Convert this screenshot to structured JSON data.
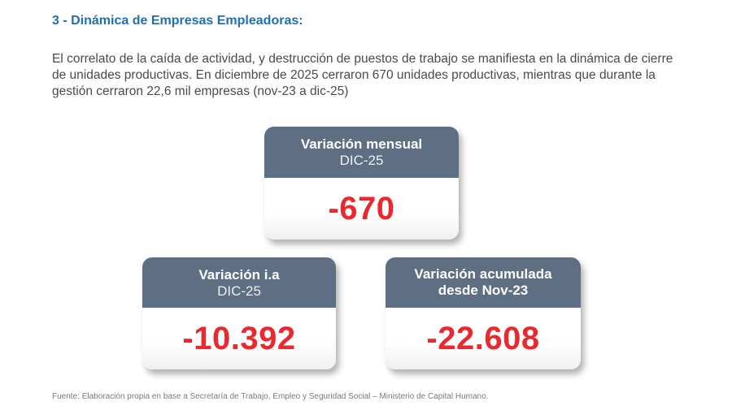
{
  "section": {
    "title": "3 - Dinámica de Empresas Empleadoras:"
  },
  "intro": "El correlato de la caída de actividad, y destrucción de puestos de trabajo se manifiesta en la dinámica de cierre de unidades productivas. En diciembre de 2025 cerraron 670 unidades productivas, mientras que durante la gestión cerraron 22,6 mil empresas (nov-23 a dic-25)",
  "cards": {
    "monthly": {
      "title": "Variación mensual",
      "subtitle": "DIC-25",
      "value": "-670"
    },
    "yoy": {
      "title": "Variación i.a",
      "subtitle": "DIC-25",
      "value": "-10.392"
    },
    "cumulative": {
      "title_line1": "Variación acumulada",
      "title_line2": "desde Nov-23",
      "value": "-22.608"
    }
  },
  "source": "Fuente: Elaboración propia en base a Secretaría de Trabajo, Empleo y Seguridad Social – Ministerio de Capital Humano.",
  "colors": {
    "title_blue": "#1f6fb2",
    "card_header": "#5e6f83",
    "value_red": "#e8292f"
  }
}
